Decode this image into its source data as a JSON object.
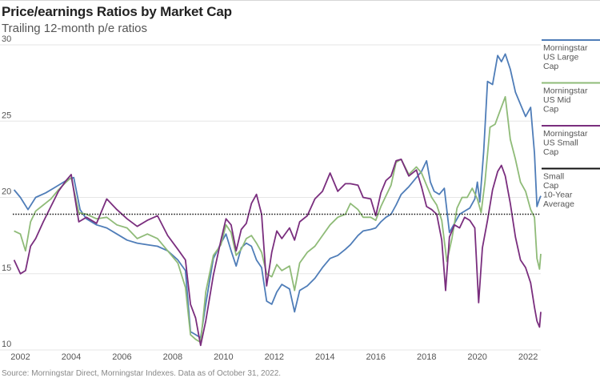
{
  "header": {
    "title": "Price/earnings Ratios by Market Cap",
    "subtitle": "Trailing 12-month p/e ratios"
  },
  "footer": {
    "source": "Source: Morningstar Direct, Morningstar Indexes. Data as of October 31, 2022."
  },
  "colors": {
    "large": "#4f7db8",
    "mid": "#8fbb78",
    "small": "#7a2e7e",
    "average": "#111111",
    "grid": "#e6e6e6"
  },
  "chart_data": {
    "type": "line",
    "title": "Price/earnings Ratios by Market Cap",
    "subtitle": "Trailing 12-month p/e ratios",
    "ylim": [
      10,
      30
    ],
    "yticks": [
      10,
      15,
      20,
      25,
      30
    ],
    "xlim": [
      2001.7,
      2022.5
    ],
    "xticks": [
      "2002",
      "2004",
      "2006",
      "2008",
      "2010",
      "2012",
      "2014",
      "2016",
      "2018",
      "2020",
      "2022"
    ],
    "grid": true,
    "legend_position": "right",
    "reference_line": {
      "name": "Small Cap 10-Year Average",
      "value": 18.9
    },
    "series": [
      {
        "name": "Morningstar US Large Cap",
        "color": "#4f7db8",
        "points": [
          [
            2001.75,
            20.5
          ],
          [
            2002.0,
            20.0
          ],
          [
            2002.3,
            19.2
          ],
          [
            2002.6,
            20.0
          ],
          [
            2003.0,
            20.3
          ],
          [
            2003.3,
            20.6
          ],
          [
            2003.6,
            20.9
          ],
          [
            2003.9,
            21.2
          ],
          [
            2004.1,
            21.3
          ],
          [
            2004.35,
            19.2
          ],
          [
            2004.6,
            18.6
          ],
          [
            2005.0,
            18.2
          ],
          [
            2005.4,
            18.0
          ],
          [
            2005.8,
            17.6
          ],
          [
            2006.2,
            17.2
          ],
          [
            2006.6,
            17.0
          ],
          [
            2007.0,
            16.9
          ],
          [
            2007.4,
            16.8
          ],
          [
            2007.8,
            16.5
          ],
          [
            2008.2,
            15.9
          ],
          [
            2008.5,
            15.2
          ],
          [
            2008.7,
            11.2
          ],
          [
            2008.9,
            11.0
          ],
          [
            2009.1,
            10.8
          ],
          [
            2009.3,
            13.0
          ],
          [
            2009.6,
            16.0
          ],
          [
            2009.9,
            17.0
          ],
          [
            2010.1,
            17.6
          ],
          [
            2010.3,
            16.5
          ],
          [
            2010.5,
            15.5
          ],
          [
            2010.7,
            16.7
          ],
          [
            2010.9,
            17.0
          ],
          [
            2011.1,
            16.8
          ],
          [
            2011.3,
            15.9
          ],
          [
            2011.5,
            15.4
          ],
          [
            2011.7,
            13.2
          ],
          [
            2011.9,
            13.0
          ],
          [
            2012.1,
            13.8
          ],
          [
            2012.3,
            14.3
          ],
          [
            2012.6,
            14.0
          ],
          [
            2012.8,
            12.5
          ],
          [
            2013.0,
            13.9
          ],
          [
            2013.3,
            14.2
          ],
          [
            2013.6,
            14.7
          ],
          [
            2013.9,
            15.4
          ],
          [
            2014.2,
            16.0
          ],
          [
            2014.5,
            16.2
          ],
          [
            2014.8,
            16.6
          ],
          [
            2015.0,
            16.9
          ],
          [
            2015.3,
            17.5
          ],
          [
            2015.5,
            17.8
          ],
          [
            2015.8,
            17.9
          ],
          [
            2016.0,
            18.0
          ],
          [
            2016.2,
            18.4
          ],
          [
            2016.4,
            18.7
          ],
          [
            2016.6,
            18.9
          ],
          [
            2016.8,
            19.5
          ],
          [
            2017.0,
            20.2
          ],
          [
            2017.3,
            20.7
          ],
          [
            2017.6,
            21.3
          ],
          [
            2017.8,
            21.7
          ],
          [
            2018.0,
            22.4
          ],
          [
            2018.15,
            21.0
          ],
          [
            2018.3,
            20.4
          ],
          [
            2018.5,
            20.2
          ],
          [
            2018.7,
            20.6
          ],
          [
            2018.9,
            17.7
          ],
          [
            2019.1,
            18.3
          ],
          [
            2019.3,
            18.9
          ],
          [
            2019.5,
            19.1
          ],
          [
            2019.7,
            19.3
          ],
          [
            2019.9,
            19.9
          ],
          [
            2020.0,
            21.0
          ],
          [
            2020.1,
            19.7
          ],
          [
            2020.25,
            23.0
          ],
          [
            2020.4,
            27.6
          ],
          [
            2020.6,
            27.4
          ],
          [
            2020.8,
            29.3
          ],
          [
            2020.95,
            28.9
          ],
          [
            2021.1,
            29.4
          ],
          [
            2021.3,
            28.4
          ],
          [
            2021.5,
            26.9
          ],
          [
            2021.7,
            26.1
          ],
          [
            2021.9,
            25.3
          ],
          [
            2022.1,
            25.9
          ],
          [
            2022.25,
            22.9
          ],
          [
            2022.35,
            19.4
          ],
          [
            2022.45,
            19.9
          ],
          [
            2022.5,
            20.1
          ]
        ]
      },
      {
        "name": "Morningstar US Mid Cap",
        "color": "#8fbb78",
        "points": [
          [
            2001.75,
            17.8
          ],
          [
            2002.0,
            17.6
          ],
          [
            2002.2,
            16.5
          ],
          [
            2002.4,
            18.4
          ],
          [
            2002.6,
            19.1
          ],
          [
            2002.9,
            19.5
          ],
          [
            2003.2,
            19.9
          ],
          [
            2003.5,
            20.5
          ],
          [
            2003.8,
            21.0
          ],
          [
            2004.0,
            21.3
          ],
          [
            2004.3,
            19.0
          ],
          [
            2004.6,
            18.9
          ],
          [
            2005.0,
            18.6
          ],
          [
            2005.4,
            18.7
          ],
          [
            2005.8,
            18.2
          ],
          [
            2006.2,
            18.0
          ],
          [
            2006.6,
            17.3
          ],
          [
            2007.0,
            17.6
          ],
          [
            2007.4,
            17.3
          ],
          [
            2007.8,
            16.5
          ],
          [
            2008.2,
            15.7
          ],
          [
            2008.5,
            14.1
          ],
          [
            2008.7,
            11.0
          ],
          [
            2008.9,
            10.7
          ],
          [
            2009.1,
            10.5
          ],
          [
            2009.3,
            13.8
          ],
          [
            2009.6,
            16.2
          ],
          [
            2009.9,
            16.9
          ],
          [
            2010.1,
            18.2
          ],
          [
            2010.3,
            17.7
          ],
          [
            2010.5,
            16.2
          ],
          [
            2010.7,
            16.6
          ],
          [
            2010.9,
            17.3
          ],
          [
            2011.1,
            17.5
          ],
          [
            2011.3,
            17.0
          ],
          [
            2011.5,
            16.4
          ],
          [
            2011.7,
            15.0
          ],
          [
            2011.9,
            14.8
          ],
          [
            2012.1,
            15.6
          ],
          [
            2012.3,
            15.2
          ],
          [
            2012.6,
            15.5
          ],
          [
            2012.8,
            13.9
          ],
          [
            2013.0,
            15.7
          ],
          [
            2013.3,
            16.4
          ],
          [
            2013.6,
            16.8
          ],
          [
            2013.9,
            17.5
          ],
          [
            2014.2,
            18.2
          ],
          [
            2014.5,
            18.7
          ],
          [
            2014.8,
            18.9
          ],
          [
            2015.0,
            19.6
          ],
          [
            2015.3,
            19.2
          ],
          [
            2015.5,
            18.7
          ],
          [
            2015.8,
            18.7
          ],
          [
            2016.0,
            18.5
          ],
          [
            2016.2,
            19.4
          ],
          [
            2016.4,
            20.1
          ],
          [
            2016.6,
            20.8
          ],
          [
            2016.8,
            22.3
          ],
          [
            2017.0,
            22.5
          ],
          [
            2017.3,
            21.5
          ],
          [
            2017.6,
            22.0
          ],
          [
            2017.8,
            21.6
          ],
          [
            2018.0,
            20.8
          ],
          [
            2018.2,
            20.0
          ],
          [
            2018.4,
            19.5
          ],
          [
            2018.6,
            18.5
          ],
          [
            2018.8,
            15.8
          ],
          [
            2019.0,
            17.3
          ],
          [
            2019.2,
            19.3
          ],
          [
            2019.4,
            20.0
          ],
          [
            2019.6,
            20.0
          ],
          [
            2019.8,
            20.6
          ],
          [
            2020.0,
            19.9
          ],
          [
            2020.15,
            19.0
          ],
          [
            2020.3,
            21.0
          ],
          [
            2020.5,
            24.6
          ],
          [
            2020.7,
            24.8
          ],
          [
            2020.9,
            25.7
          ],
          [
            2021.1,
            26.6
          ],
          [
            2021.3,
            23.8
          ],
          [
            2021.5,
            22.5
          ],
          [
            2021.7,
            21.0
          ],
          [
            2021.9,
            20.4
          ],
          [
            2022.1,
            19.2
          ],
          [
            2022.25,
            18.7
          ],
          [
            2022.35,
            16.0
          ],
          [
            2022.45,
            15.3
          ],
          [
            2022.5,
            16.3
          ]
        ]
      },
      {
        "name": "Morningstar US Small Cap",
        "color": "#7a2e7e",
        "points": [
          [
            2001.75,
            15.9
          ],
          [
            2002.0,
            15.0
          ],
          [
            2002.2,
            15.2
          ],
          [
            2002.4,
            16.8
          ],
          [
            2002.6,
            17.3
          ],
          [
            2002.9,
            18.4
          ],
          [
            2003.2,
            19.4
          ],
          [
            2003.5,
            20.4
          ],
          [
            2003.8,
            21.1
          ],
          [
            2004.0,
            21.5
          ],
          [
            2004.3,
            18.4
          ],
          [
            2004.6,
            18.7
          ],
          [
            2005.0,
            18.3
          ],
          [
            2005.4,
            19.9
          ],
          [
            2005.8,
            19.2
          ],
          [
            2006.2,
            18.6
          ],
          [
            2006.6,
            18.1
          ],
          [
            2007.0,
            18.5
          ],
          [
            2007.4,
            18.8
          ],
          [
            2007.8,
            17.5
          ],
          [
            2008.2,
            16.6
          ],
          [
            2008.5,
            15.9
          ],
          [
            2008.7,
            13.0
          ],
          [
            2008.9,
            12.1
          ],
          [
            2009.1,
            10.3
          ],
          [
            2009.3,
            11.9
          ],
          [
            2009.6,
            14.9
          ],
          [
            2009.9,
            17.2
          ],
          [
            2010.1,
            18.6
          ],
          [
            2010.3,
            18.2
          ],
          [
            2010.5,
            16.5
          ],
          [
            2010.7,
            17.9
          ],
          [
            2010.9,
            18.3
          ],
          [
            2011.1,
            19.6
          ],
          [
            2011.3,
            20.2
          ],
          [
            2011.5,
            18.9
          ],
          [
            2011.7,
            14.2
          ],
          [
            2011.9,
            16.4
          ],
          [
            2012.1,
            17.8
          ],
          [
            2012.3,
            17.3
          ],
          [
            2012.6,
            18.0
          ],
          [
            2012.8,
            17.2
          ],
          [
            2013.0,
            18.4
          ],
          [
            2013.3,
            18.8
          ],
          [
            2013.6,
            19.9
          ],
          [
            2013.9,
            20.4
          ],
          [
            2014.2,
            21.6
          ],
          [
            2014.5,
            20.4
          ],
          [
            2014.8,
            20.9
          ],
          [
            2015.0,
            20.9
          ],
          [
            2015.3,
            20.8
          ],
          [
            2015.5,
            20.0
          ],
          [
            2015.8,
            19.9
          ],
          [
            2016.0,
            18.8
          ],
          [
            2016.2,
            20.3
          ],
          [
            2016.4,
            21.1
          ],
          [
            2016.6,
            21.4
          ],
          [
            2016.8,
            22.4
          ],
          [
            2017.0,
            22.5
          ],
          [
            2017.3,
            21.4
          ],
          [
            2017.6,
            21.8
          ],
          [
            2017.8,
            20.7
          ],
          [
            2018.0,
            19.4
          ],
          [
            2018.2,
            19.2
          ],
          [
            2018.4,
            18.9
          ],
          [
            2018.6,
            17.2
          ],
          [
            2018.75,
            13.9
          ],
          [
            2018.9,
            17.4
          ],
          [
            2019.1,
            18.2
          ],
          [
            2019.3,
            18.0
          ],
          [
            2019.5,
            18.7
          ],
          [
            2019.7,
            18.5
          ],
          [
            2019.9,
            18.0
          ],
          [
            2020.05,
            13.1
          ],
          [
            2020.2,
            16.7
          ],
          [
            2020.4,
            18.5
          ],
          [
            2020.6,
            20.5
          ],
          [
            2020.8,
            21.7
          ],
          [
            2020.95,
            22.1
          ],
          [
            2021.1,
            21.4
          ],
          [
            2021.3,
            19.6
          ],
          [
            2021.5,
            17.4
          ],
          [
            2021.7,
            15.9
          ],
          [
            2021.9,
            15.4
          ],
          [
            2022.1,
            14.4
          ],
          [
            2022.25,
            12.8
          ],
          [
            2022.35,
            11.9
          ],
          [
            2022.45,
            11.5
          ],
          [
            2022.5,
            12.5
          ]
        ]
      }
    ],
    "legend": [
      {
        "key": "large",
        "lines": [
          "Morningstar",
          "US Large",
          "Cap"
        ]
      },
      {
        "key": "mid",
        "lines": [
          "Morningstar",
          "US Mid",
          "Cap"
        ]
      },
      {
        "key": "small",
        "lines": [
          "Morningstar",
          "US Small",
          "Cap"
        ]
      },
      {
        "key": "average",
        "lines": [
          "Small",
          "Cap",
          "10-Year",
          "Average"
        ]
      }
    ]
  }
}
